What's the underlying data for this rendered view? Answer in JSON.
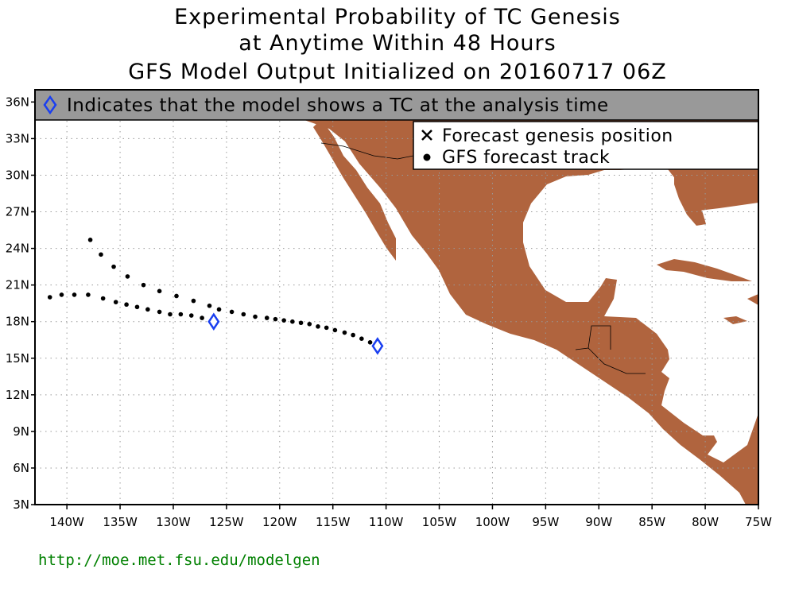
{
  "title": {
    "line1": "Experimental Probability of TC Genesis",
    "line2": "at Anytime Within 48 Hours",
    "line3": "GFS Model Output Initialized on 20160717 06Z"
  },
  "banner": {
    "text": "Indicates that the model shows a TC at the analysis time",
    "icon": "diamond-icon"
  },
  "legend": {
    "items": [
      {
        "label": "Forecast genesis position",
        "icon": "cross-icon"
      },
      {
        "label": "GFS forecast track",
        "icon": "dot-icon"
      }
    ]
  },
  "axes": {
    "lon_range": [
      -143,
      -75
    ],
    "lat_range": [
      3,
      37
    ],
    "lat_ticks": [
      {
        "value": 3,
        "label": "3N"
      },
      {
        "value": 6,
        "label": "6N"
      },
      {
        "value": 9,
        "label": "9N"
      },
      {
        "value": 12,
        "label": "12N"
      },
      {
        "value": 15,
        "label": "15N"
      },
      {
        "value": 18,
        "label": "18N"
      },
      {
        "value": 21,
        "label": "21N"
      },
      {
        "value": 24,
        "label": "24N"
      },
      {
        "value": 27,
        "label": "27N"
      },
      {
        "value": 30,
        "label": "30N"
      },
      {
        "value": 33,
        "label": "33N"
      },
      {
        "value": 36,
        "label": "36N"
      }
    ],
    "lon_ticks": [
      {
        "value": -140,
        "label": "140W"
      },
      {
        "value": -135,
        "label": "135W"
      },
      {
        "value": -130,
        "label": "130W"
      },
      {
        "value": -125,
        "label": "125W"
      },
      {
        "value": -120,
        "label": "120W"
      },
      {
        "value": -115,
        "label": "115W"
      },
      {
        "value": -110,
        "label": "110W"
      },
      {
        "value": -105,
        "label": "105W"
      },
      {
        "value": -100,
        "label": "100W"
      },
      {
        "value": -95,
        "label": "95W"
      },
      {
        "value": -90,
        "label": "90W"
      },
      {
        "value": -85,
        "label": "85W"
      },
      {
        "value": -80,
        "label": "80W"
      },
      {
        "value": -75,
        "label": "75W"
      }
    ],
    "grid": true
  },
  "colors": {
    "land": "#b0643e",
    "banner_bg": "#999999",
    "diamond": "#1a3ff0",
    "footer": "#008000"
  },
  "tracks": [
    {
      "name": "",
      "points": [
        [
          -110.7,
          16.0
        ],
        [
          -111.5,
          16.3
        ],
        [
          -112.3,
          16.6
        ],
        [
          -113.1,
          16.9
        ],
        [
          -113.9,
          17.1
        ],
        [
          -114.8,
          17.3
        ],
        [
          -115.6,
          17.5
        ],
        [
          -116.4,
          17.6
        ],
        [
          -117.2,
          17.8
        ],
        [
          -118.0,
          17.9
        ],
        [
          -118.8,
          18.0
        ],
        [
          -119.6,
          18.1
        ],
        [
          -120.4,
          18.2
        ],
        [
          -121.2,
          18.3
        ],
        [
          -122.3,
          18.4
        ],
        [
          -123.4,
          18.6
        ],
        [
          -124.5,
          18.8
        ],
        [
          -125.7,
          19.0
        ],
        [
          -126.6,
          19.3
        ],
        [
          -128.1,
          19.7
        ],
        [
          -129.7,
          20.1
        ],
        [
          -131.3,
          20.5
        ],
        [
          -132.8,
          21.0
        ],
        [
          -134.3,
          21.7
        ],
        [
          -135.6,
          22.5
        ],
        [
          -136.8,
          23.5
        ],
        [
          -137.8,
          24.7
        ]
      ],
      "genesis_diamond": [
        -110.8,
        16.0
      ]
    },
    {
      "name": "",
      "points": [
        [
          -126.2,
          18.1
        ],
        [
          -127.3,
          18.3
        ],
        [
          -128.3,
          18.5
        ],
        [
          -129.3,
          18.6
        ],
        [
          -130.3,
          18.6
        ],
        [
          -131.3,
          18.8
        ],
        [
          -132.4,
          19.0
        ],
        [
          -133.4,
          19.2
        ],
        [
          -134.4,
          19.4
        ],
        [
          -135.4,
          19.6
        ],
        [
          -136.6,
          19.9
        ],
        [
          -138.0,
          20.2
        ],
        [
          -139.3,
          20.2
        ],
        [
          -140.5,
          20.2
        ],
        [
          -141.6,
          20.0
        ]
      ],
      "genesis_diamond": [
        -126.2,
        18.0
      ]
    }
  ],
  "footer": {
    "url": "http://moe.met.fsu.edu/modelgen"
  }
}
